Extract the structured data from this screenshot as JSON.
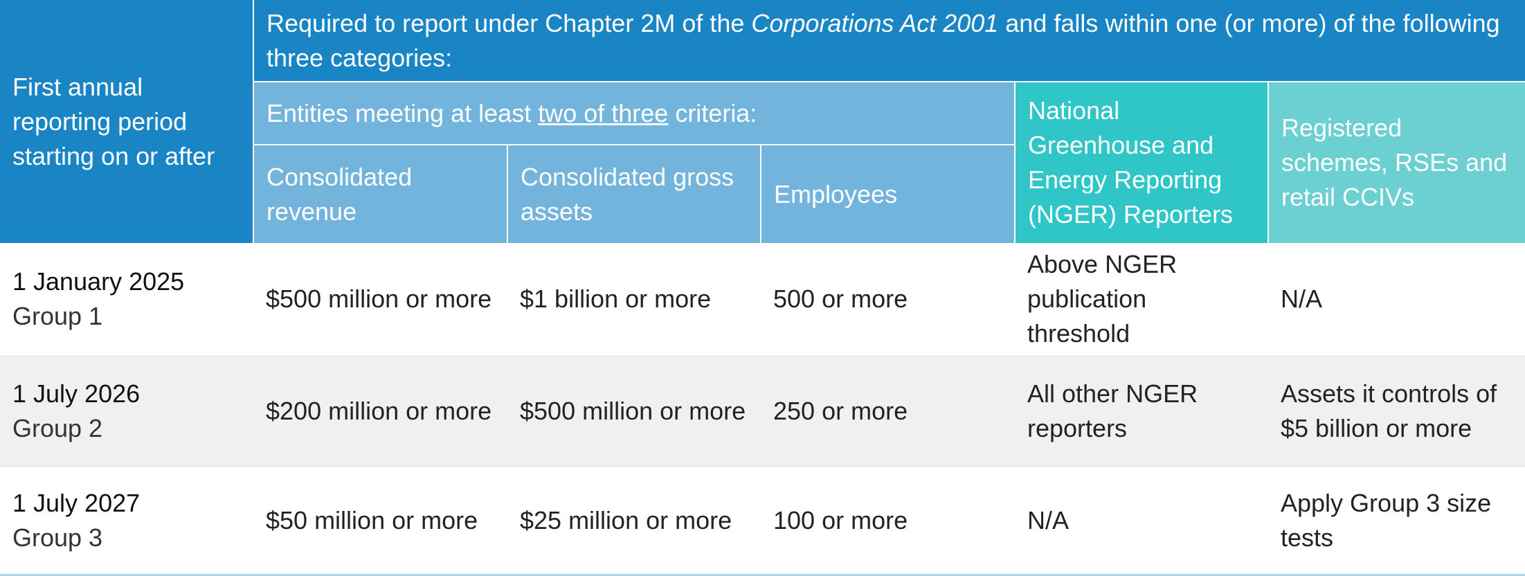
{
  "header": {
    "first_col": "First annual reporting period starting on or after",
    "required_pre": "Required to report under Chapter 2M of the ",
    "required_act": "Corporations Act 2001",
    "required_post": " and falls within one (or more) of the following three categories:",
    "criteria_pre": "Entities meeting at least ",
    "criteria_underline": "two of three",
    "criteria_post": " criteria:",
    "col_revenue": "Consolidated revenue",
    "col_assets": "Consolidated gross assets",
    "col_employees": "Employees",
    "col_nger": "National Greenhouse and Energy Reporting (NGER) Reporters",
    "col_schemes": "Registered schemes, RSEs and retail CCIVs"
  },
  "rows": [
    {
      "date": "1 January 2025",
      "group": "Group 1",
      "revenue": "$500 million or more",
      "assets": "$1 billion or more",
      "employees": "500 or more",
      "nger": "Above NGER publication threshold",
      "schemes": "N/A"
    },
    {
      "date": "1 July 2026",
      "group": "Group 2",
      "revenue": "$200 million or more",
      "assets": "$500 million or more",
      "employees": "250 or more",
      "nger": "All other NGER reporters",
      "schemes": "Assets it controls of $5 billion or more"
    },
    {
      "date": "1 July 2027",
      "group": "Group 3",
      "revenue": "$50 million or more",
      "assets": "$25 million or more",
      "employees": "100 or more",
      "nger": "N/A",
      "schemes": "Apply Group 3 size tests"
    }
  ]
}
